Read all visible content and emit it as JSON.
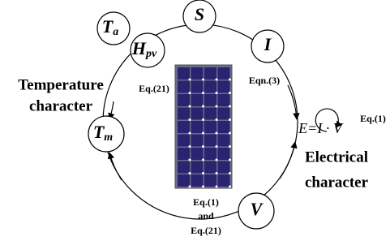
{
  "nodes": [
    {
      "label": "T",
      "sub": "a"
    },
    {
      "label": "H",
      "sub": "pv"
    },
    {
      "label": "S"
    },
    {
      "label": "I"
    },
    {
      "label": "T",
      "sub": "m"
    },
    {
      "label": "V"
    }
  ],
  "equation": {
    "lhs": "E",
    "rhs": "=I · V"
  },
  "labels": {
    "temperature": [
      "Temperature",
      "character"
    ],
    "electrical": [
      "Electrical",
      "character"
    ],
    "eq21": "Eq.(21)",
    "eqn3": "Eqn.(3)",
    "eq1": "Eq.(1)",
    "bottom": [
      "Eq.(1)",
      "and",
      "Eq.(21)"
    ]
  }
}
